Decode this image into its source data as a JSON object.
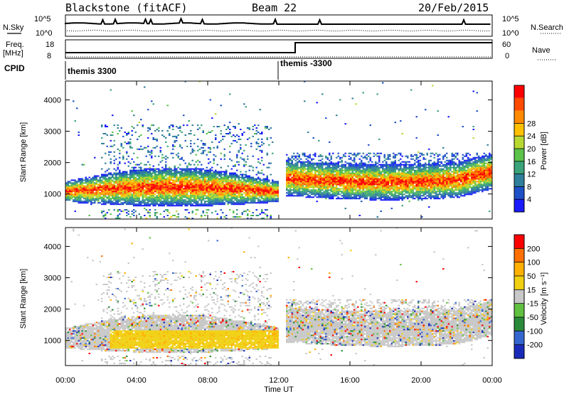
{
  "header": {
    "station": "Blackstone (fitACF)",
    "beam": "Beam 22",
    "date": "20/Feb/2015"
  },
  "status_panels": {
    "nsky_label": "N.Sky",
    "nsky_ticks": [
      "10^5",
      "10^0"
    ],
    "nsearch_label": "N.Search",
    "nsearch_ticks": [
      "10^5",
      "10^0"
    ],
    "freq_label_line1": "Freq.",
    "freq_label_line2": "[MHz]",
    "freq_ticks": [
      "18",
      "8"
    ],
    "nave_label": "Nave",
    "nave_ticks": [
      "60",
      "0"
    ],
    "cpid_label": "CPID",
    "cpid_segments": [
      {
        "label": "themis 3300",
        "start_hour": 0
      },
      {
        "label": "themis -3300",
        "start_hour": 12.0
      }
    ]
  },
  "chart_data": [
    {
      "type": "heatmap",
      "name": "power",
      "ylabel": "Slant Range [km]",
      "yticks": [
        1000,
        2000,
        3000,
        4000
      ],
      "ylim": [
        200,
        4600
      ],
      "xlabel": "Time UT",
      "xticks": [
        "00:00",
        "04:00",
        "08:00",
        "12:00",
        "16:00",
        "20:00",
        "00:00"
      ],
      "xlim_hours": [
        0,
        24
      ],
      "colorbar": {
        "label": "Power [dB]",
        "ticks": [
          "4",
          "8",
          "12",
          "16",
          "20",
          "24",
          "28"
        ],
        "colors": [
          "#1a1aff",
          "#1e50c8",
          "#2f7f9a",
          "#3aa37a",
          "#5cc24a",
          "#b8d832",
          "#ffc000",
          "#ff8a00",
          "#ff4a00",
          "#ff0000"
        ]
      }
    },
    {
      "type": "heatmap",
      "name": "velocity",
      "ylabel": "Slant Range [km]",
      "yticks": [
        1000,
        2000,
        3000,
        4000
      ],
      "ylim": [
        200,
        4600
      ],
      "xlabel": "Time UT",
      "xticks": [
        "00:00",
        "04:00",
        "08:00",
        "12:00",
        "16:00",
        "20:00",
        "00:00"
      ],
      "xlim_hours": [
        0,
        24
      ],
      "colorbar": {
        "label": "Velocity [m s⁻¹]",
        "ticks": [
          "200",
          "100",
          "50",
          "15",
          "-15",
          "-50",
          "-100",
          "-200"
        ],
        "colors": [
          "#1a2ab8",
          "#3466d0",
          "#2a8a3a",
          "#60c040",
          "#c8c8c8",
          "#f0d010",
          "#ffb000",
          "#ff7000",
          "#ff0000"
        ]
      }
    }
  ],
  "time_axis_label": "Time UT"
}
